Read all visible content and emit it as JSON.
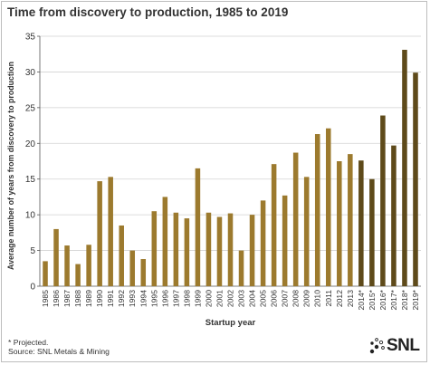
{
  "title": "Time from discovery to production, 1985 to 2019",
  "footnote": {
    "line1": "* Projected.",
    "line2": "Source: SNL Metals & Mining"
  },
  "logo": {
    "text": "SNL",
    "icon": "snl-dots-icon"
  },
  "colors": {
    "historical": "#9c7a2e",
    "projected": "#5e4a1a",
    "axis": "#555555",
    "grid": "#d2d2d2",
    "text": "#333333"
  },
  "chart_data": {
    "type": "bar",
    "title": "Time from discovery to production, 1985 to 2019",
    "xlabel": "Startup year",
    "ylabel": "Average number of years from discovery to production",
    "ylim": [
      0,
      35
    ],
    "yticks": [
      0,
      5,
      10,
      15,
      20,
      25,
      30,
      35
    ],
    "grid": true,
    "categories": [
      "1985",
      "1986",
      "1987",
      "1988",
      "1989",
      "1990",
      "1991",
      "1992",
      "1993",
      "1994",
      "1995",
      "1996",
      "1997",
      "1998",
      "1999",
      "2000",
      "2001",
      "2002",
      "2003",
      "2004",
      "2005",
      "2006",
      "2007",
      "2008",
      "2009",
      "2010",
      "2011",
      "2012",
      "2013",
      "2014*",
      "2015*",
      "2016*",
      "2017*",
      "2018*",
      "2019*"
    ],
    "values": [
      3.5,
      8.0,
      5.7,
      3.1,
      5.8,
      14.7,
      15.3,
      8.5,
      5.0,
      3.8,
      10.5,
      12.5,
      10.3,
      9.5,
      16.5,
      10.3,
      9.7,
      10.2,
      5.0,
      10.0,
      12.0,
      17.1,
      12.7,
      18.7,
      15.3,
      21.3,
      22.1,
      17.5,
      18.5,
      17.6,
      15.0,
      23.9,
      19.7,
      33.1,
      29.9
    ],
    "projected": [
      false,
      false,
      false,
      false,
      false,
      false,
      false,
      false,
      false,
      false,
      false,
      false,
      false,
      false,
      false,
      false,
      false,
      false,
      false,
      false,
      false,
      false,
      false,
      false,
      false,
      false,
      false,
      false,
      false,
      true,
      true,
      true,
      true,
      true,
      true
    ]
  }
}
